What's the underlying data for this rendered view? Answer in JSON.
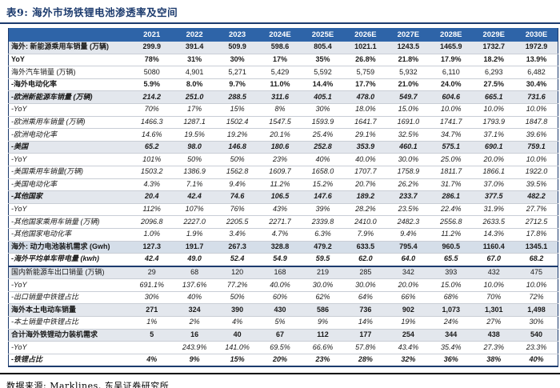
{
  "title": "表9:  海外市场铁锂电池渗透率及空间",
  "source_note": "数据来源: Marklines, 东吴证券研究所",
  "colors": {
    "header_bg": "#2e64a8",
    "accent_navy": "#1c3b6e",
    "row_shade_light": "#e3e7ed",
    "row_shade_blue": "#d5dee9",
    "grid_line": "#c9ced6",
    "footer_rule": "#000000"
  },
  "table": {
    "columns": [
      "2021",
      "2022",
      "2023",
      "2024E",
      "2025E",
      "2026E",
      "2027E",
      "2028E",
      "2029E",
      "2030E"
    ],
    "rows": [
      {
        "label": "海外: 新能源乘用车销量 (万辆)",
        "values": [
          "299.9",
          "391.4",
          "509.9",
          "598.6",
          "805.4",
          "1021.1",
          "1243.5",
          "1465.9",
          "1732.7",
          "1972.9"
        ],
        "bold": true,
        "italic": false,
        "shade": "light",
        "thick_bottom": false
      },
      {
        "label": "YoY",
        "values": [
          "78%",
          "31%",
          "30%",
          "17%",
          "35%",
          "26.8%",
          "21.8%",
          "17.9%",
          "18.2%",
          "13.9%"
        ],
        "bold": true,
        "italic": false,
        "shade": "none",
        "thick_bottom": false
      },
      {
        "label": "海外汽车销量 (万辆)",
        "values": [
          "5080",
          "4,901",
          "5,271",
          "5,429",
          "5,592",
          "5,759",
          "5,932",
          "6,110",
          "6,293",
          "6,482"
        ],
        "bold": false,
        "italic": false,
        "shade": "none",
        "thick_bottom": false
      },
      {
        "label": "-海外电动化率",
        "values": [
          "5.9%",
          "8.0%",
          "9.7%",
          "11.0%",
          "14.4%",
          "17.7%",
          "21.0%",
          "24.0%",
          "27.5%",
          "30.4%"
        ],
        "bold": true,
        "italic": false,
        "shade": "none",
        "thick_bottom": false
      },
      {
        "label": "-欧洲新能源车销量 (万辆)",
        "values": [
          "214.2",
          "251.0",
          "288.5",
          "311.6",
          "405.1",
          "478.0",
          "549.7",
          "604.6",
          "665.1",
          "731.6"
        ],
        "bold": true,
        "italic": true,
        "shade": "light",
        "thick_bottom": false
      },
      {
        "label": "-YoY",
        "values": [
          "70%",
          "17%",
          "15%",
          "8%",
          "30%",
          "18.0%",
          "15.0%",
          "10.0%",
          "10.0%",
          "10.0%"
        ],
        "bold": false,
        "italic": true,
        "shade": "none",
        "thick_bottom": false
      },
      {
        "label": "-欧洲乘用车销量 (万辆)",
        "values": [
          "1466.3",
          "1287.1",
          "1502.4",
          "1547.5",
          "1593.9",
          "1641.7",
          "1691.0",
          "1741.7",
          "1793.9",
          "1847.8"
        ],
        "bold": false,
        "italic": true,
        "shade": "none",
        "thick_bottom": false
      },
      {
        "label": "-欧洲电动化率",
        "values": [
          "14.6%",
          "19.5%",
          "19.2%",
          "20.1%",
          "25.4%",
          "29.1%",
          "32.5%",
          "34.7%",
          "37.1%",
          "39.6%"
        ],
        "bold": false,
        "italic": true,
        "shade": "none",
        "thick_bottom": false
      },
      {
        "label": "-美国",
        "values": [
          "65.2",
          "98.0",
          "146.8",
          "180.6",
          "252.8",
          "353.9",
          "460.1",
          "575.1",
          "690.1",
          "759.1"
        ],
        "bold": true,
        "italic": true,
        "shade": "light",
        "thick_bottom": false
      },
      {
        "label": "-YoY",
        "values": [
          "101%",
          "50%",
          "50%",
          "23%",
          "40%",
          "40.0%",
          "30.0%",
          "25.0%",
          "20.0%",
          "10.0%"
        ],
        "bold": false,
        "italic": true,
        "shade": "none",
        "thick_bottom": false
      },
      {
        "label": "-美国乘用车销量(万辆)",
        "values": [
          "1503.2",
          "1386.9",
          "1562.8",
          "1609.7",
          "1658.0",
          "1707.7",
          "1758.9",
          "1811.7",
          "1866.1",
          "1922.0"
        ],
        "bold": false,
        "italic": true,
        "shade": "none",
        "thick_bottom": false
      },
      {
        "label": "-美国电动化率",
        "values": [
          "4.3%",
          "7.1%",
          "9.4%",
          "11.2%",
          "15.2%",
          "20.7%",
          "26.2%",
          "31.7%",
          "37.0%",
          "39.5%"
        ],
        "bold": false,
        "italic": true,
        "shade": "none",
        "thick_bottom": false
      },
      {
        "label": "-其他国家",
        "values": [
          "20.4",
          "42.4",
          "74.6",
          "106.5",
          "147.6",
          "189.2",
          "233.7",
          "286.1",
          "377.5",
          "482.2"
        ],
        "bold": true,
        "italic": true,
        "shade": "light",
        "thick_bottom": false
      },
      {
        "label": "-YoY",
        "values": [
          "112%",
          "107%",
          "76%",
          "43%",
          "39%",
          "28.2%",
          "23.5%",
          "22.4%",
          "31.9%",
          "27.7%"
        ],
        "bold": false,
        "italic": true,
        "shade": "none",
        "thick_bottom": false
      },
      {
        "label": "-其他国家乘用车销量 (万辆)",
        "values": [
          "2096.8",
          "2227.0",
          "2205.5",
          "2271.7",
          "2339.8",
          "2410.0",
          "2482.3",
          "2556.8",
          "2633.5",
          "2712.5"
        ],
        "bold": false,
        "italic": true,
        "shade": "none",
        "thick_bottom": false
      },
      {
        "label": "-其他国家电动化率",
        "values": [
          "1.0%",
          "1.9%",
          "3.4%",
          "4.7%",
          "6.3%",
          "7.9%",
          "9.4%",
          "11.2%",
          "14.3%",
          "17.8%"
        ],
        "bold": false,
        "italic": true,
        "shade": "none",
        "thick_bottom": false
      },
      {
        "label": "海外: 动力电池装机需求 (Gwh)",
        "values": [
          "127.3",
          "191.7",
          "267.3",
          "328.8",
          "479.2",
          "633.5",
          "795.4",
          "960.5",
          "1160.4",
          "1345.1"
        ],
        "bold": true,
        "italic": false,
        "shade": "blue",
        "thick_bottom": false
      },
      {
        "label": "-海外平均单车带电量 (kwh)",
        "values": [
          "42.4",
          "49.0",
          "52.4",
          "54.9",
          "59.5",
          "62.0",
          "64.0",
          "65.5",
          "67.0",
          "68.2"
        ],
        "bold": true,
        "italic": true,
        "shade": "none",
        "thick_bottom": true
      },
      {
        "label": "国内新能源车出口销量 (万辆)",
        "values": [
          "29",
          "68",
          "120",
          "168",
          "219",
          "285",
          "342",
          "393",
          "432",
          "475"
        ],
        "bold": false,
        "italic": false,
        "shade": "light",
        "thick_bottom": false
      },
      {
        "label": "-YoY",
        "values": [
          "691.1%",
          "137.6%",
          "77.2%",
          "40.0%",
          "30.0%",
          "30.0%",
          "20.0%",
          "15.0%",
          "10.0%",
          "10.0%"
        ],
        "bold": false,
        "italic": true,
        "shade": "none",
        "thick_bottom": false
      },
      {
        "label": "-出口销量中铁锂占比",
        "values": [
          "30%",
          "40%",
          "50%",
          "60%",
          "62%",
          "64%",
          "66%",
          "68%",
          "70%",
          "72%"
        ],
        "bold": false,
        "italic": true,
        "shade": "none",
        "thick_bottom": false
      },
      {
        "label": "海外本土电动车销量",
        "values": [
          "271",
          "324",
          "390",
          "430",
          "586",
          "736",
          "902",
          "1,073",
          "1,301",
          "1,498"
        ],
        "bold": true,
        "italic": false,
        "shade": "light",
        "thick_bottom": false
      },
      {
        "label": "-本土销量中铁锂占比",
        "values": [
          "1%",
          "2%",
          "4%",
          "5%",
          "9%",
          "14%",
          "19%",
          "24%",
          "27%",
          "30%"
        ],
        "bold": false,
        "italic": true,
        "shade": "none",
        "thick_bottom": false
      },
      {
        "label": "合计海外铁锂动力装机需求",
        "values": [
          "5",
          "16",
          "40",
          "67",
          "112",
          "177",
          "254",
          "344",
          "438",
          "540"
        ],
        "bold": true,
        "italic": false,
        "shade": "light",
        "thick_bottom": false
      },
      {
        "label": "-YoY",
        "values": [
          "",
          "243.9%",
          "141.0%",
          "69.5%",
          "66.6%",
          "57.8%",
          "43.4%",
          "35.4%",
          "27.3%",
          "23.3%"
        ],
        "bold": false,
        "italic": true,
        "shade": "none",
        "thick_bottom": false
      },
      {
        "label": "-铁锂占比",
        "values": [
          "4%",
          "9%",
          "15%",
          "20%",
          "23%",
          "28%",
          "32%",
          "36%",
          "38%",
          "40%"
        ],
        "bold": true,
        "italic": true,
        "shade": "none",
        "thick_bottom": false
      }
    ]
  }
}
